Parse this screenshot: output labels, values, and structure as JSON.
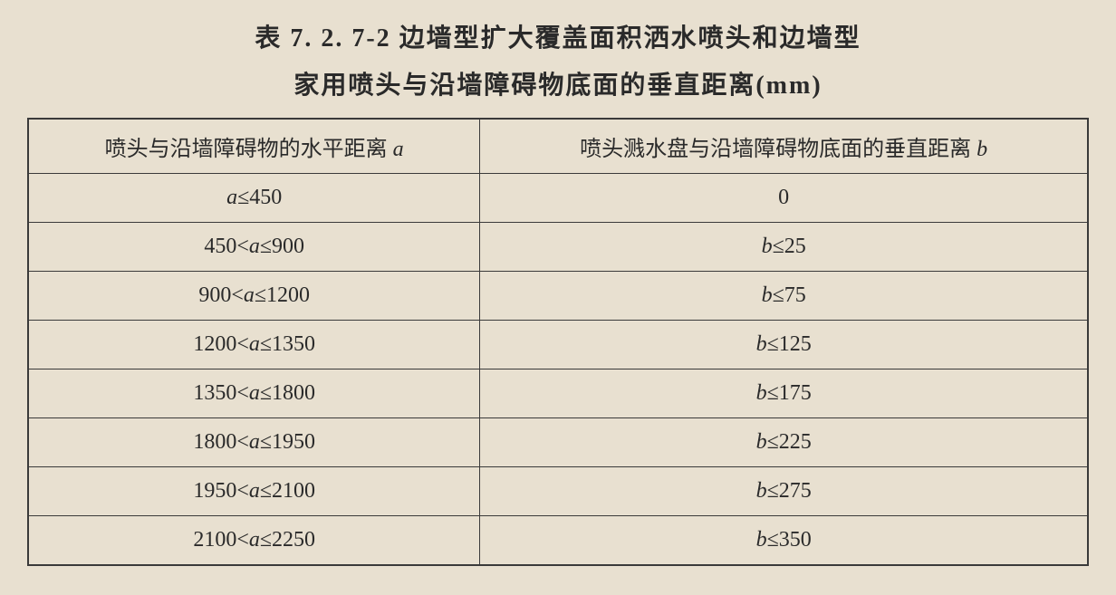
{
  "title": {
    "line1": "表 7. 2. 7-2  边墙型扩大覆盖面积洒水喷头和边墙型",
    "line2": "家用喷头与沿墙障碍物底面的垂直距离(mm)"
  },
  "columns": {
    "col1_prefix": "喷头与沿墙障碍物的水平距离 ",
    "col1_var": "a",
    "col2_prefix": "喷头溅水盘与沿墙障碍物底面的垂直距离 ",
    "col2_var": "b"
  },
  "rows": [
    {
      "a_low": null,
      "a_rel1": null,
      "a_var": "a",
      "a_rel2": "≤",
      "a_high": "450",
      "b_var": null,
      "b_rel": null,
      "b_val": "0"
    },
    {
      "a_low": "450",
      "a_rel1": "<",
      "a_var": "a",
      "a_rel2": "≤",
      "a_high": "900",
      "b_var": "b",
      "b_rel": "≤",
      "b_val": "25"
    },
    {
      "a_low": "900",
      "a_rel1": "<",
      "a_var": "a",
      "a_rel2": "≤",
      "a_high": "1200",
      "b_var": "b",
      "b_rel": "≤",
      "b_val": "75"
    },
    {
      "a_low": "1200",
      "a_rel1": "<",
      "a_var": "a",
      "a_rel2": "≤",
      "a_high": "1350",
      "b_var": "b",
      "b_rel": "≤",
      "b_val": "125"
    },
    {
      "a_low": "1350",
      "a_rel1": "<",
      "a_var": "a",
      "a_rel2": "≤",
      "a_high": "1800",
      "b_var": "b",
      "b_rel": "≤",
      "b_val": "175"
    },
    {
      "a_low": "1800",
      "a_rel1": "<",
      "a_var": "a",
      "a_rel2": "≤",
      "a_high": "1950",
      "b_var": "b",
      "b_rel": "≤",
      "b_val": "225"
    },
    {
      "a_low": "1950",
      "a_rel1": "<",
      "a_var": "a",
      "a_rel2": "≤",
      "a_high": "2100",
      "b_var": "b",
      "b_rel": "≤",
      "b_val": "275"
    },
    {
      "a_low": "2100",
      "a_rel1": "<",
      "a_var": "a",
      "a_rel2": "≤",
      "a_high": "2250",
      "b_var": "b",
      "b_rel": "≤",
      "b_val": "350"
    }
  ],
  "styling": {
    "background_color": "#e8e0d0",
    "border_color": "#3a3a3a",
    "text_color": "#2a2a2a",
    "title_fontsize": 28,
    "cell_fontsize": 24,
    "font_family": "SimSun"
  }
}
